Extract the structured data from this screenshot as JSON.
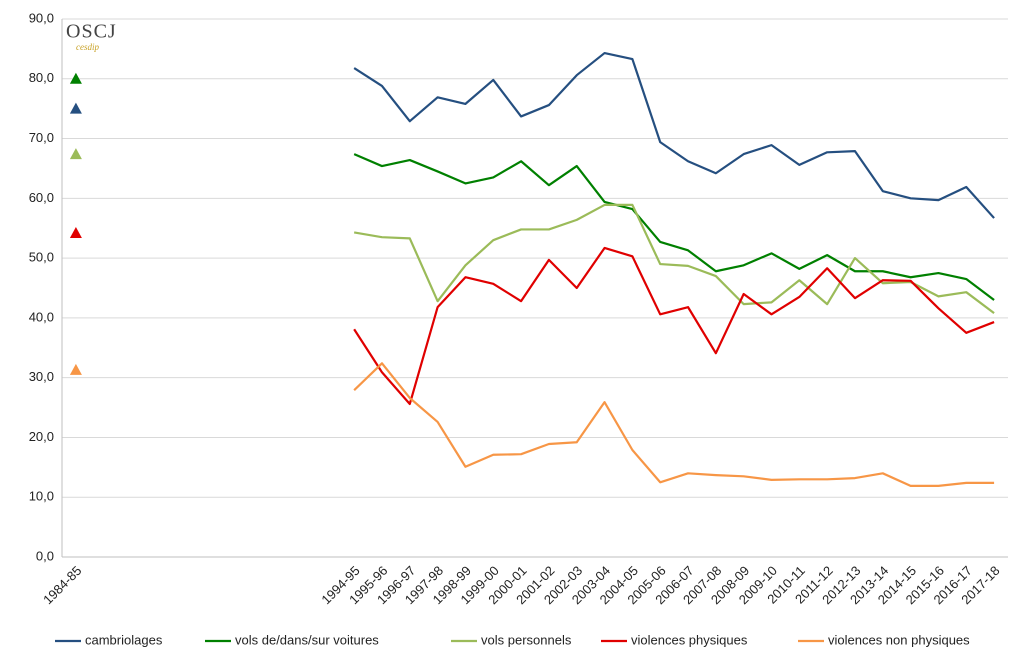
{
  "logo": {
    "title": "OSCJ",
    "subtitle": "cesdip"
  },
  "chart_data": {
    "type": "line",
    "categories": [
      "1984-85",
      null,
      null,
      null,
      null,
      null,
      null,
      null,
      null,
      null,
      "1994-95",
      "1995-96",
      "1996-97",
      "1997-98",
      "1998-99",
      "1999-00",
      "2000-01",
      "2001-02",
      "2002-03",
      "2003-04",
      "2004-05",
      "2005-06",
      "2006-07",
      "2007-08",
      "2008-09",
      "2009-10",
      "2010-11",
      "2011-12",
      "2012-13",
      "2013-14",
      "2014-15",
      "2015-16",
      "2016-17",
      "2017-18"
    ],
    "series": [
      {
        "name": "cambriolages",
        "color": "#254f80",
        "values": [
          75.0,
          null,
          null,
          null,
          null,
          null,
          null,
          null,
          null,
          null,
          81.8,
          78.8,
          72.9,
          76.9,
          75.8,
          79.8,
          73.7,
          75.6,
          80.6,
          84.3,
          83.3,
          69.4,
          66.2,
          64.2,
          67.4,
          68.9,
          65.6,
          67.7,
          67.9,
          61.2,
          60.0,
          59.7,
          61.9,
          56.7
        ]
      },
      {
        "name": "vols de/dans/sur voitures",
        "color": "#008000",
        "values": [
          80.0,
          null,
          null,
          null,
          null,
          null,
          null,
          null,
          null,
          null,
          67.4,
          65.4,
          66.4,
          64.5,
          62.5,
          63.5,
          66.2,
          62.2,
          65.4,
          59.4,
          58.2,
          52.7,
          51.3,
          47.8,
          48.8,
          50.8,
          48.2,
          50.5,
          47.8,
          47.8,
          46.8,
          47.5,
          46.5,
          43.0
        ]
      },
      {
        "name": "vols personnels",
        "color": "#9bbb59",
        "values": [
          67.4,
          null,
          null,
          null,
          null,
          null,
          null,
          null,
          null,
          null,
          54.3,
          53.5,
          53.3,
          42.8,
          48.8,
          53.0,
          54.8,
          54.8,
          56.4,
          58.9,
          58.9,
          49.0,
          48.7,
          47.0,
          42.3,
          42.6,
          46.3,
          42.3,
          50.0,
          45.8,
          46.0,
          43.6,
          44.3,
          40.8
        ]
      },
      {
        "name": "violences physiques",
        "color": "#e00000",
        "values": [
          54.2,
          null,
          null,
          null,
          null,
          null,
          null,
          null,
          null,
          null,
          38.1,
          30.9,
          25.6,
          41.8,
          46.8,
          45.7,
          42.8,
          49.7,
          45.0,
          51.7,
          50.3,
          40.6,
          41.8,
          34.1,
          44.0,
          40.6,
          43.5,
          48.3,
          43.3,
          46.3,
          46.2,
          41.6,
          37.5,
          39.3
        ]
      },
      {
        "name": "violences non physiques",
        "color": "#f79646",
        "values": [
          31.3,
          null,
          null,
          null,
          null,
          null,
          null,
          null,
          null,
          null,
          27.9,
          32.4,
          26.6,
          22.6,
          15.1,
          17.1,
          17.2,
          18.9,
          19.2,
          25.9,
          17.9,
          12.5,
          14.0,
          13.7,
          13.5,
          12.9,
          13.0,
          13.0,
          13.2,
          14.0,
          11.9,
          11.9,
          12.4,
          12.4
        ]
      }
    ],
    "ylim": [
      0,
      90
    ],
    "yticks": [
      {
        "value": 0,
        "label": "0,0"
      },
      {
        "value": 10,
        "label": "10,0"
      },
      {
        "value": 20,
        "label": "20,0"
      },
      {
        "value": 30,
        "label": "30,0"
      },
      {
        "value": 40,
        "label": "40,0"
      },
      {
        "value": 50,
        "label": "50,0"
      },
      {
        "value": 60,
        "label": "60,0"
      },
      {
        "value": 70,
        "label": "70,0"
      },
      {
        "value": 80,
        "label": "80,0"
      },
      {
        "value": 90,
        "label": "90,0"
      }
    ],
    "grid": true,
    "legend": "bottom"
  }
}
